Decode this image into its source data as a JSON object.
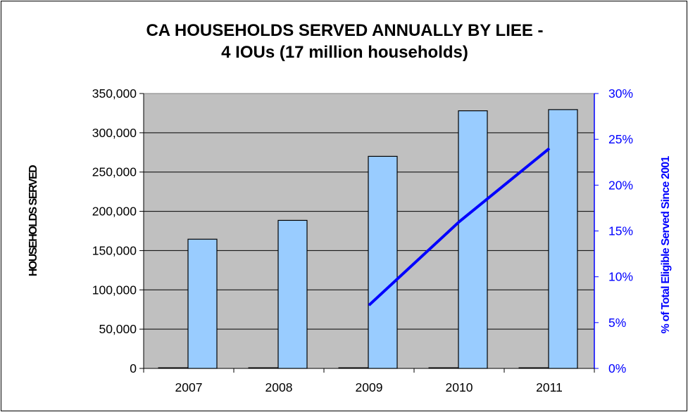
{
  "chart_data": {
    "type": "bar",
    "title": "CA HOUSEHOLDS SERVED ANNUALLY BY LIEE -",
    "subtitle": "4 IOUs (17 million households)",
    "categories": [
      "2007",
      "2008",
      "2009",
      "2010",
      "2011"
    ],
    "series": [
      {
        "values": [
          0,
          0,
          0,
          0,
          0
        ],
        "type": "bar",
        "color": "#000000"
      },
      {
        "values": [
          164500,
          188500,
          270000,
          328000,
          329500
        ],
        "type": "bar",
        "color": "#99ccff"
      },
      {
        "values": [
          null,
          null,
          0.069,
          0.16,
          0.24
        ],
        "type": "line",
        "axis": "right",
        "color": "#0000ff"
      }
    ],
    "ylabel": "HOUSEHOLDS SERVED",
    "ylabel_right": "% of Total Eligible Served Since 2001",
    "ylim": [
      0,
      350000
    ],
    "ylim_right": [
      0,
      0.3
    ],
    "yticks": [
      "0",
      "50,000",
      "100,000",
      "150,000",
      "200,000",
      "250,000",
      "300,000",
      "350,000"
    ],
    "yticks_right": [
      "0%",
      "5%",
      "10%",
      "15%",
      "20%",
      "25%",
      "30%"
    ],
    "grid": true,
    "plot_background": "#c0c0c0",
    "bar_color": "#99ccff",
    "line_color": "#0000ff",
    "right_axis_color": "#0000ff"
  }
}
